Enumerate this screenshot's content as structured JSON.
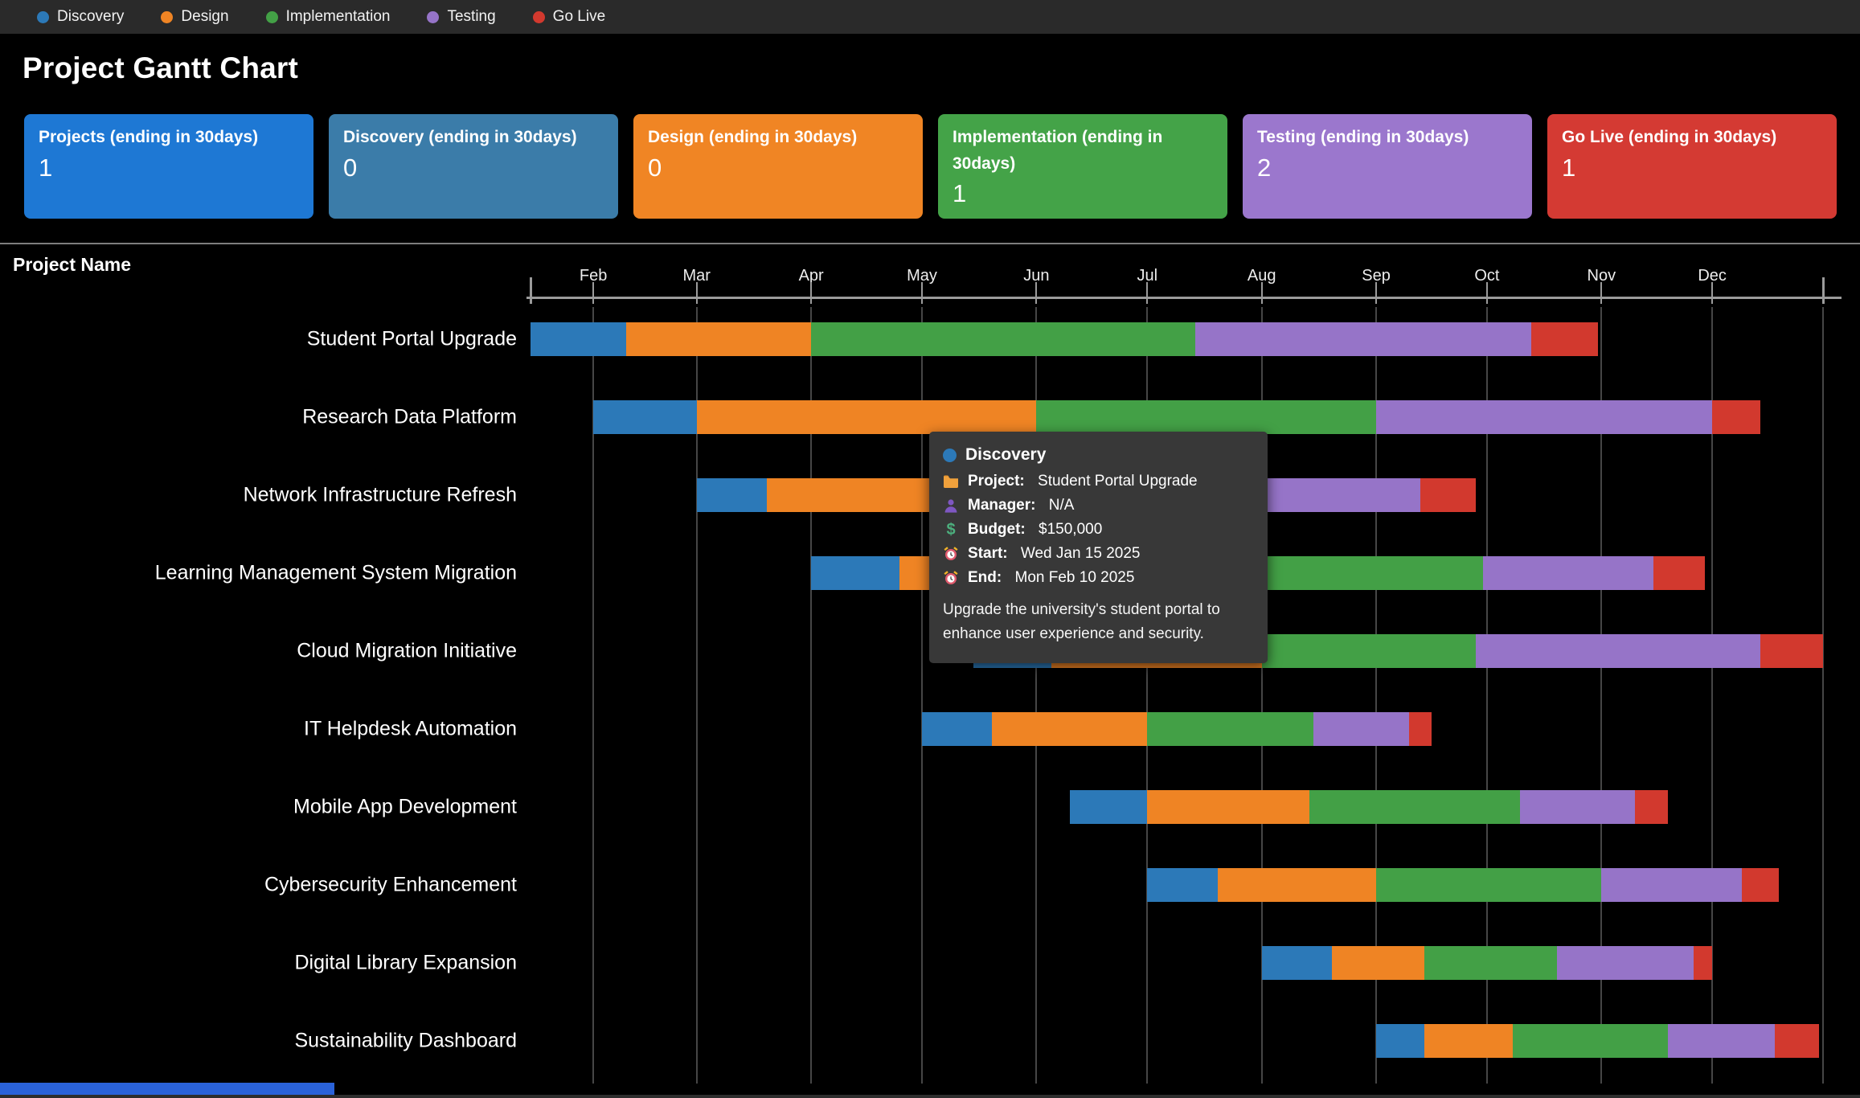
{
  "header": {
    "title": "Project Gantt Chart"
  },
  "legend": {
    "items": [
      {
        "label": "Discovery",
        "color": "#2C79B8"
      },
      {
        "label": "Design",
        "color": "#EF8424"
      },
      {
        "label": "Implementation",
        "color": "#43A046"
      },
      {
        "label": "Testing",
        "color": "#9674C8"
      },
      {
        "label": "Go Live",
        "color": "#D2392E"
      }
    ]
  },
  "summary_cards": [
    {
      "label": "Projects (ending in 30days)",
      "value": "1",
      "color": "#1E78D4"
    },
    {
      "label": "Discovery (ending in 30days)",
      "value": "0",
      "color": "#3B7CA9"
    },
    {
      "label": "Design (ending in 30days)",
      "value": "0",
      "color": "#F08524"
    },
    {
      "label": "Implementation (ending in 30days)",
      "value": "1",
      "color": "#44A348"
    },
    {
      "label": "Testing (ending in 30days)",
      "value": "2",
      "color": "#9B77CD"
    },
    {
      "label": "Go Live (ending in 30days)",
      "value": "1",
      "color": "#D43A33"
    }
  ],
  "gantt": {
    "column_header": "Project Name"
  },
  "chart_data": {
    "type": "gantt",
    "timeline": {
      "start": "2025-01-15",
      "end": "2025-12-31"
    },
    "months": [
      {
        "label": "Feb",
        "date": "2025-02-01"
      },
      {
        "label": "Mar",
        "date": "2025-03-01"
      },
      {
        "label": "Apr",
        "date": "2025-04-01"
      },
      {
        "label": "May",
        "date": "2025-05-01"
      },
      {
        "label": "Jun",
        "date": "2025-06-01"
      },
      {
        "label": "Jul",
        "date": "2025-07-01"
      },
      {
        "label": "Aug",
        "date": "2025-08-01"
      },
      {
        "label": "Sep",
        "date": "2025-09-01"
      },
      {
        "label": "Oct",
        "date": "2025-10-01"
      },
      {
        "label": "Nov",
        "date": "2025-11-01"
      },
      {
        "label": "Dec",
        "date": "2025-12-01"
      }
    ],
    "phases": [
      {
        "name": "Discovery",
        "color": "#2C79B8"
      },
      {
        "name": "Design",
        "color": "#EF8424"
      },
      {
        "name": "Implementation",
        "color": "#43A046"
      },
      {
        "name": "Testing",
        "color": "#9674C8"
      },
      {
        "name": "Go Live",
        "color": "#D2392E"
      }
    ],
    "projects": [
      {
        "name": "Student Portal Upgrade",
        "segments": [
          {
            "phase": "Discovery",
            "start": "2025-01-15",
            "end": "2025-02-10"
          },
          {
            "phase": "Design",
            "start": "2025-02-10",
            "end": "2025-04-01"
          },
          {
            "phase": "Implementation",
            "start": "2025-04-01",
            "end": "2025-07-14"
          },
          {
            "phase": "Testing",
            "start": "2025-07-14",
            "end": "2025-10-13"
          },
          {
            "phase": "Go Live",
            "start": "2025-10-13",
            "end": "2025-10-31"
          }
        ]
      },
      {
        "name": "Research Data Platform",
        "segments": [
          {
            "phase": "Discovery",
            "start": "2025-02-01",
            "end": "2025-03-01"
          },
          {
            "phase": "Design",
            "start": "2025-03-01",
            "end": "2025-06-01"
          },
          {
            "phase": "Implementation",
            "start": "2025-06-01",
            "end": "2025-09-01"
          },
          {
            "phase": "Testing",
            "start": "2025-09-01",
            "end": "2025-12-01"
          },
          {
            "phase": "Go Live",
            "start": "2025-12-01",
            "end": "2025-12-14"
          }
        ]
      },
      {
        "name": "Network Infrastructure Refresh",
        "segments": [
          {
            "phase": "Discovery",
            "start": "2025-03-01",
            "end": "2025-03-20"
          },
          {
            "phase": "Design",
            "start": "2025-03-20",
            "end": "2025-05-10"
          },
          {
            "phase": "Implementation",
            "start": "2025-05-10",
            "end": "2025-08-01"
          },
          {
            "phase": "Testing",
            "start": "2025-08-01",
            "end": "2025-09-13"
          },
          {
            "phase": "Go Live",
            "start": "2025-09-13",
            "end": "2025-09-28"
          }
        ]
      },
      {
        "name": "Learning Management System Migration",
        "segments": [
          {
            "phase": "Discovery",
            "start": "2025-04-01",
            "end": "2025-04-25"
          },
          {
            "phase": "Design",
            "start": "2025-04-25",
            "end": "2025-06-15"
          },
          {
            "phase": "Implementation",
            "start": "2025-06-15",
            "end": "2025-09-30"
          },
          {
            "phase": "Testing",
            "start": "2025-09-30",
            "end": "2025-11-15"
          },
          {
            "phase": "Go Live",
            "start": "2025-11-15",
            "end": "2025-11-29"
          }
        ]
      },
      {
        "name": "Cloud Migration Initiative",
        "segments": [
          {
            "phase": "Discovery",
            "start": "2025-05-15",
            "end": "2025-06-05"
          },
          {
            "phase": "Design",
            "start": "2025-06-05",
            "end": "2025-08-01"
          },
          {
            "phase": "Implementation",
            "start": "2025-08-01",
            "end": "2025-09-28"
          },
          {
            "phase": "Testing",
            "start": "2025-09-28",
            "end": "2025-12-14"
          },
          {
            "phase": "Go Live",
            "start": "2025-12-14",
            "end": "2025-12-31"
          }
        ]
      },
      {
        "name": "IT Helpdesk Automation",
        "segments": [
          {
            "phase": "Discovery",
            "start": "2025-05-01",
            "end": "2025-05-20"
          },
          {
            "phase": "Design",
            "start": "2025-05-20",
            "end": "2025-07-01"
          },
          {
            "phase": "Implementation",
            "start": "2025-07-01",
            "end": "2025-08-15"
          },
          {
            "phase": "Testing",
            "start": "2025-08-15",
            "end": "2025-09-10"
          },
          {
            "phase": "Go Live",
            "start": "2025-09-10",
            "end": "2025-09-16"
          }
        ]
      },
      {
        "name": "Mobile App Development",
        "segments": [
          {
            "phase": "Discovery",
            "start": "2025-06-10",
            "end": "2025-07-01"
          },
          {
            "phase": "Design",
            "start": "2025-07-01",
            "end": "2025-08-14"
          },
          {
            "phase": "Implementation",
            "start": "2025-08-14",
            "end": "2025-10-10"
          },
          {
            "phase": "Testing",
            "start": "2025-10-10",
            "end": "2025-11-10"
          },
          {
            "phase": "Go Live",
            "start": "2025-11-10",
            "end": "2025-11-19"
          }
        ]
      },
      {
        "name": "Cybersecurity Enhancement",
        "segments": [
          {
            "phase": "Discovery",
            "start": "2025-07-01",
            "end": "2025-07-20"
          },
          {
            "phase": "Design",
            "start": "2025-07-20",
            "end": "2025-09-01"
          },
          {
            "phase": "Implementation",
            "start": "2025-09-01",
            "end": "2025-11-01"
          },
          {
            "phase": "Testing",
            "start": "2025-11-01",
            "end": "2025-12-09"
          },
          {
            "phase": "Go Live",
            "start": "2025-12-09",
            "end": "2025-12-19"
          }
        ]
      },
      {
        "name": "Digital Library Expansion",
        "segments": [
          {
            "phase": "Discovery",
            "start": "2025-08-01",
            "end": "2025-08-20"
          },
          {
            "phase": "Design",
            "start": "2025-08-20",
            "end": "2025-09-14"
          },
          {
            "phase": "Implementation",
            "start": "2025-09-14",
            "end": "2025-10-20"
          },
          {
            "phase": "Testing",
            "start": "2025-10-20",
            "end": "2025-11-26"
          },
          {
            "phase": "Go Live",
            "start": "2025-11-26",
            "end": "2025-12-01"
          }
        ]
      },
      {
        "name": "Sustainability Dashboard",
        "segments": [
          {
            "phase": "Discovery",
            "start": "2025-09-01",
            "end": "2025-09-14"
          },
          {
            "phase": "Design",
            "start": "2025-09-14",
            "end": "2025-10-08"
          },
          {
            "phase": "Implementation",
            "start": "2025-10-08",
            "end": "2025-11-19"
          },
          {
            "phase": "Testing",
            "start": "2025-11-19",
            "end": "2025-12-18"
          },
          {
            "phase": "Go Live",
            "start": "2025-12-18",
            "end": "2025-12-30"
          }
        ]
      }
    ]
  },
  "tooltip": {
    "phase": "Discovery",
    "fields": [
      {
        "icon": "folder-icon",
        "label": "Project:",
        "value": "Student Portal Upgrade"
      },
      {
        "icon": "person-icon",
        "label": "Manager:",
        "value": "N/A"
      },
      {
        "icon": "dollar-icon",
        "label": "Budget:",
        "value": "$150,000"
      },
      {
        "icon": "alarm-icon",
        "label": "Start:",
        "value": "Wed Jan 15 2025"
      },
      {
        "icon": "alarm-icon",
        "label": "End:",
        "value": "Mon Feb 10 2025"
      }
    ],
    "description": "Upgrade the university's student portal to enhance user experience and security."
  }
}
